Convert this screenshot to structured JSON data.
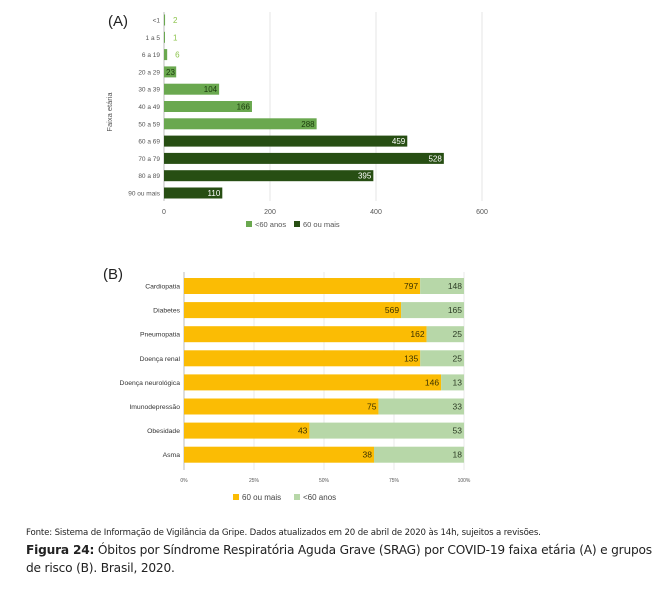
{
  "chart_data": [
    {
      "type": "bar",
      "orientation": "horizontal",
      "panel_label": "(A)",
      "title": "",
      "ylabel": "Faixa etária",
      "xlabel": "",
      "categories": [
        "<1",
        "1 a 5",
        "6 a 19",
        "20 a 29",
        "30 a 39",
        "40 a 49",
        "50 a 59",
        "60 a 69",
        "70 a 79",
        "80 a 89",
        "90 ou mais"
      ],
      "values": [
        2,
        1,
        6,
        23,
        104,
        166,
        288,
        459,
        528,
        395,
        110
      ],
      "group": [
        "<60 anos",
        "<60 anos",
        "<60 anos",
        "<60 anos",
        "<60 anos",
        "<60 anos",
        "<60 anos",
        "60 ou mais",
        "60 ou mais",
        "60 ou mais",
        "60 ou mais"
      ],
      "xlim": [
        0,
        600
      ],
      "xticks": [
        0,
        200,
        400,
        600
      ],
      "xtick_labels": [
        "0",
        "200",
        "400",
        "600"
      ],
      "grid": true,
      "legend": {
        "position": "bottom",
        "entries": [
          {
            "label": "<60 anos",
            "color": "#6aa84f"
          },
          {
            "label": "60 ou mais",
            "color": "#274e13"
          }
        ]
      }
    },
    {
      "type": "bar",
      "orientation": "horizontal",
      "stacked": "percent",
      "panel_label": "(B)",
      "title": "",
      "xlabel": "",
      "ylabel": "",
      "categories": [
        "Cardiopatia",
        "Diabetes",
        "Pneumopatia",
        "Doença renal",
        "Doença neurológica",
        "Imunodepressão",
        "Obesidade",
        "Asma"
      ],
      "series": [
        {
          "name": "60 ou mais",
          "color": "#fbbc04",
          "values": [
            797,
            569,
            162,
            135,
            146,
            75,
            43,
            38
          ]
        },
        {
          "name": "<60 anos",
          "color": "#b7d7a8",
          "values": [
            148,
            165,
            25,
            25,
            13,
            33,
            53,
            18
          ]
        }
      ],
      "xlim": [
        0,
        100
      ],
      "xticks": [
        0,
        25,
        50,
        75,
        100
      ],
      "xtick_labels": [
        "0%",
        "25%",
        "50%",
        "75%",
        "100%"
      ],
      "grid": true,
      "legend": {
        "position": "bottom"
      }
    }
  ],
  "footer": {
    "source": "Fonte: Sistema de Informação de Vigilância da Gripe. Dados atualizados em 20 de abril de 2020 às 14h, sujeitos a revisões.",
    "figure_label": "Figura 24:",
    "figure_caption": " Óbitos por Síndrome Respiratória Aguda Grave (SRAG) por COVID-19 faixa etária (A) e grupos de risco (B). Brasil, 2020."
  }
}
